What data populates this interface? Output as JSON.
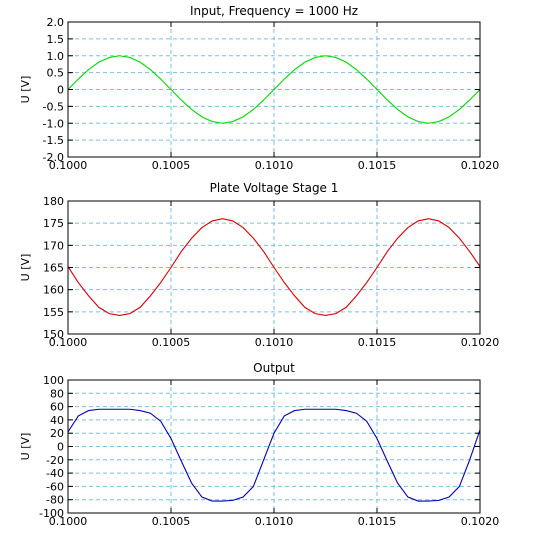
{
  "chart_data": [
    {
      "type": "line",
      "title": "Input, Frequency = 1000 Hz",
      "ylabel": "U [V]",
      "xlabel": "",
      "xlim": [
        0.1,
        0.102
      ],
      "ylim": [
        -2.0,
        2.0
      ],
      "xticks": [
        0.1,
        0.1005,
        0.101,
        0.1015,
        0.102
      ],
      "xtick_labels": [
        "0.1000",
        "0.1005",
        "0.1010",
        "0.1015",
        "0.1020"
      ],
      "yticks": [
        -2.0,
        -1.5,
        -1.0,
        -0.5,
        0.0,
        0.5,
        1.0,
        1.5,
        2.0
      ],
      "ytick_labels": [
        "-2.0",
        "-1.5",
        "-1.0",
        "-0.5",
        "0",
        "0.5",
        "1.0",
        "1.5",
        "2.0"
      ],
      "grid": true,
      "series": [
        {
          "color": "#00dd00",
          "x": [
            0.1,
            0.10005,
            0.1001,
            0.10015,
            0.1002,
            0.10025,
            0.1003,
            0.10035,
            0.1004,
            0.10045,
            0.1005,
            0.10055,
            0.1006,
            0.10065,
            0.1007,
            0.10075,
            0.1008,
            0.10085,
            0.1009,
            0.10095,
            0.101,
            0.10105,
            0.1011,
            0.10115,
            0.1012,
            0.10125,
            0.1013,
            0.10135,
            0.1014,
            0.10145,
            0.1015,
            0.10155,
            0.1016,
            0.10165,
            0.1017,
            0.10175,
            0.1018,
            0.10185,
            0.1019,
            0.10195,
            0.102
          ],
          "y": [
            0.0,
            0.31,
            0.59,
            0.81,
            0.95,
            1.0,
            0.95,
            0.81,
            0.59,
            0.31,
            0.0,
            -0.31,
            -0.59,
            -0.81,
            -0.95,
            -1.0,
            -0.95,
            -0.81,
            -0.59,
            -0.31,
            0.0,
            0.31,
            0.59,
            0.81,
            0.95,
            1.0,
            0.95,
            0.81,
            0.59,
            0.31,
            0.0,
            -0.31,
            -0.59,
            -0.81,
            -0.95,
            -1.0,
            -0.95,
            -0.81,
            -0.59,
            -0.31,
            0.0
          ]
        }
      ]
    },
    {
      "type": "line",
      "title": "Plate Voltage Stage 1",
      "ylabel": "U [V]",
      "xlabel": "",
      "xlim": [
        0.1,
        0.102
      ],
      "ylim": [
        150,
        180
      ],
      "xticks": [
        0.1,
        0.1005,
        0.101,
        0.1015,
        0.102
      ],
      "xtick_labels": [
        "0.1000",
        "0.1005",
        "0.1010",
        "0.1015",
        "0.1020"
      ],
      "yticks": [
        150,
        155,
        160,
        165,
        170,
        175,
        180
      ],
      "ytick_labels": [
        "150",
        "155",
        "160",
        "165",
        "170",
        "175",
        "180"
      ],
      "grid": true,
      "series": [
        {
          "color": "#dd0000",
          "x": [
            0.1,
            0.10005,
            0.1001,
            0.10015,
            0.1002,
            0.10025,
            0.1003,
            0.10035,
            0.1004,
            0.10045,
            0.1005,
            0.10055,
            0.1006,
            0.10065,
            0.1007,
            0.10075,
            0.1008,
            0.10085,
            0.1009,
            0.10095,
            0.101,
            0.10105,
            0.1011,
            0.10115,
            0.1012,
            0.10125,
            0.1013,
            0.10135,
            0.1014,
            0.10145,
            0.1015,
            0.10155,
            0.1016,
            0.10165,
            0.1017,
            0.10175,
            0.1018,
            0.10185,
            0.1019,
            0.10195,
            0.102
          ],
          "y": [
            165.2,
            161.6,
            158.6,
            156.0,
            154.6,
            154.2,
            154.6,
            156.0,
            158.6,
            161.6,
            165.0,
            168.6,
            171.6,
            174.0,
            175.5,
            176.0,
            175.5,
            174.0,
            171.6,
            168.6,
            165.0,
            161.6,
            158.6,
            156.0,
            154.6,
            154.2,
            154.6,
            156.0,
            158.6,
            161.6,
            165.0,
            168.6,
            171.6,
            174.0,
            175.5,
            176.0,
            175.5,
            174.0,
            171.6,
            168.6,
            165.2
          ]
        }
      ]
    },
    {
      "type": "line",
      "title": "Output",
      "ylabel": "U [V]",
      "xlabel": "",
      "xlim": [
        0.1,
        0.102
      ],
      "ylim": [
        -100,
        100
      ],
      "xticks": [
        0.1,
        0.1005,
        0.101,
        0.1015,
        0.102
      ],
      "xtick_labels": [
        "0.1000",
        "0.1005",
        "0.1010",
        "0.1015",
        "0.1020"
      ],
      "yticks": [
        -100,
        -80,
        -60,
        -40,
        -20,
        0,
        20,
        40,
        60,
        80,
        100
      ],
      "ytick_labels": [
        "-100",
        "-80",
        "-60",
        "-40",
        "-20",
        "0",
        "20",
        "40",
        "60",
        "80",
        "100"
      ],
      "grid": true,
      "series": [
        {
          "color": "#0000bb",
          "x": [
            0.1,
            0.10005,
            0.1001,
            0.10015,
            0.1002,
            0.10025,
            0.1003,
            0.10035,
            0.1004,
            0.10045,
            0.1005,
            0.10055,
            0.1006,
            0.10065,
            0.1007,
            0.10075,
            0.1008,
            0.10085,
            0.1009,
            0.10095,
            0.101,
            0.10105,
            0.1011,
            0.10115,
            0.1012,
            0.10125,
            0.1013,
            0.10135,
            0.1014,
            0.10145,
            0.1015,
            0.10155,
            0.1016,
            0.10165,
            0.1017,
            0.10175,
            0.1018,
            0.10185,
            0.1019,
            0.10195,
            0.102
          ],
          "y": [
            22,
            46,
            54,
            56,
            56,
            56,
            56,
            54,
            50,
            38,
            12,
            -22,
            -55,
            -76,
            -82,
            -82,
            -81,
            -76,
            -60,
            -20,
            20,
            46,
            54,
            56,
            56,
            56,
            56,
            54,
            50,
            38,
            12,
            -22,
            -55,
            -76,
            -82,
            -82,
            -81,
            -76,
            -60,
            -20,
            25
          ]
        }
      ]
    }
  ]
}
